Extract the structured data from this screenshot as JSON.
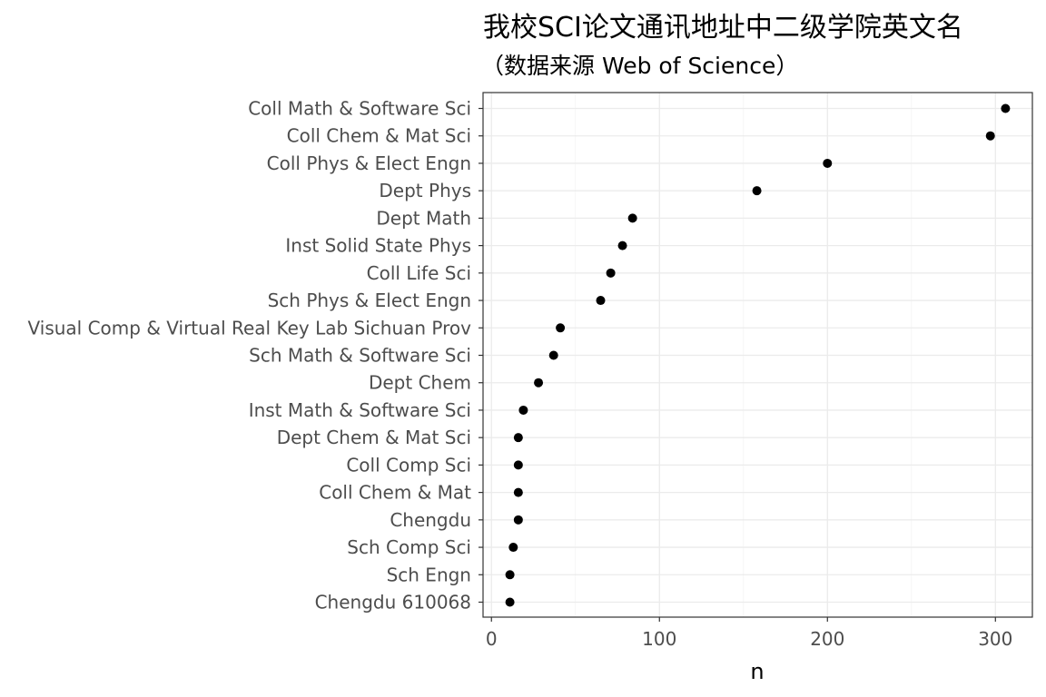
{
  "title": "我校SCI论文通讯地址中二级学院英文名",
  "subtitle": "（数据来源 Web of Science）",
  "chart_data": {
    "type": "scatter",
    "title": "我校SCI论文通讯地址中二级学院英文名",
    "subtitle": "（数据来源 Web of Science）",
    "xlabel": "n",
    "ylabel": "",
    "xlim": [
      -5,
      322
    ],
    "xticks": [
      0,
      100,
      200,
      300
    ],
    "xtick_labels": [
      "0",
      "100",
      "200",
      "300"
    ],
    "grid": true,
    "legend": "none",
    "point_color": "#000000",
    "categories": [
      "Coll Math & Software Sci",
      "Coll Chem & Mat Sci",
      "Coll Phys & Elect Engn",
      "Dept Phys",
      "Dept Math",
      "Inst Solid State Phys",
      "Coll Life Sci",
      "Sch Phys & Elect Engn",
      "Visual Comp & Virtual Real Key Lab Sichuan Prov",
      "Sch Math & Software Sci",
      "Dept Chem",
      "Inst Math & Software Sci",
      "Dept Chem & Mat Sci",
      "Coll Comp Sci",
      "Coll Chem & Mat",
      "Chengdu",
      "Sch Comp Sci",
      "Sch Engn",
      "Chengdu 610068"
    ],
    "values": [
      306,
      297,
      200,
      158,
      84,
      78,
      71,
      65,
      41,
      37,
      28,
      19,
      16,
      16,
      16,
      16,
      13,
      11,
      11
    ]
  }
}
